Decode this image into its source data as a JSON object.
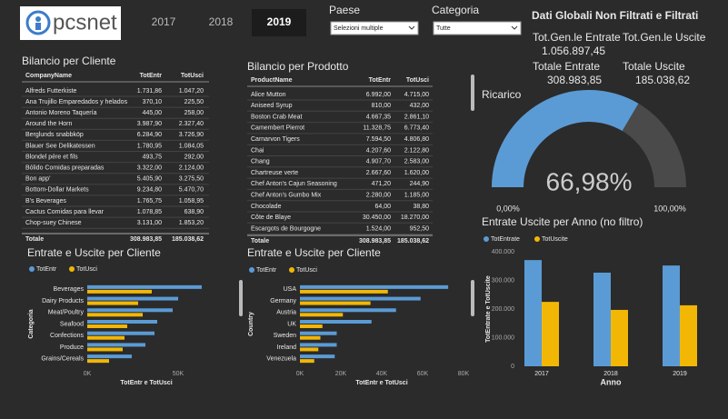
{
  "header": {
    "logo": "pcsnet",
    "years": [
      "2017",
      "2018",
      "2019"
    ]
  },
  "filters": [
    {
      "label": "Paese",
      "value": "Selezioni multiple"
    },
    {
      "label": "Categoria",
      "value": "Tutte"
    }
  ],
  "kpis": {
    "title": "Dati Globali Non Filtrati e Filtrati",
    "items": [
      {
        "label": "Tot.Gen.le Entrate",
        "value": "1.056.897,45"
      },
      {
        "label": "Tot.Gen.le Uscite"
      },
      {
        "label": "Totale Entrate",
        "value": "308.983,85"
      },
      {
        "label": "Totale Uscite",
        "value": "185.038,62"
      }
    ]
  },
  "tables": [
    {
      "title": "Bilancio per Cliente",
      "columns": [
        "CompanyName",
        "TotEntr",
        "TotUsci"
      ],
      "rows": [
        [
          "Alfreds Futterkiste",
          "1.731,86",
          "1.047,20"
        ],
        [
          "Ana Trujillo Emparedados y helados",
          "370,10",
          "225,50"
        ],
        [
          "Antonio Moreno Taquería",
          "445,00",
          "258,00"
        ],
        [
          "Around the Horn",
          "3.987,90",
          "2.327,40"
        ],
        [
          "Berglunds snabbköp",
          "6.284,90",
          "3.726,90"
        ],
        [
          "Blauer See Delikatessen",
          "1.780,95",
          "1.084,05"
        ],
        [
          "Blondel père et fils",
          "493,75",
          "292,00"
        ],
        [
          "Bólido Comidas preparadas",
          "3.322,00",
          "2.124,00"
        ],
        [
          "Bon app'",
          "5.405,90",
          "3.275,50"
        ],
        [
          "Bottom-Dollar Markets",
          "9.234,80",
          "5.470,70"
        ],
        [
          "B's Beverages",
          "1.765,75",
          "1.058,95"
        ],
        [
          "Cactus Comidas para llevar",
          "1.078,85",
          "638,90"
        ],
        [
          "Chop-suey Chinese",
          "3.131,00",
          "1.853,20"
        ]
      ],
      "total": [
        "Totale",
        "308.983,85",
        "185.038,62"
      ]
    },
    {
      "title": "Bilancio per Prodotto",
      "columns": [
        "ProductName",
        "TotEntr",
        "TotUsci"
      ],
      "rows": [
        [
          "Alice Mutton",
          "6.992,00",
          "4.715,00"
        ],
        [
          "Aniseed Syrup",
          "810,00",
          "432,00"
        ],
        [
          "Boston Crab Meat",
          "4.667,35",
          "2.861,10"
        ],
        [
          "Camembert Pierrot",
          "11.328,75",
          "6.773,40"
        ],
        [
          "Carnarvon Tigers",
          "7.594,50",
          "4.806,80"
        ],
        [
          "Chai",
          "4.207,60",
          "2.122,80"
        ],
        [
          "Chang",
          "4.907,70",
          "2.583,00"
        ],
        [
          "Chartreuse verte",
          "2.667,60",
          "1.620,00"
        ],
        [
          "Chef Anton's Cajun Seasoning",
          "471,20",
          "244,90"
        ],
        [
          "Chef Anton's Gumbo Mix",
          "2.280,00",
          "1.185,00"
        ],
        [
          "Chocolade",
          "64,00",
          "38,80"
        ],
        [
          "Côte de Blaye",
          "30.450,00",
          "18.270,00"
        ],
        [
          "Escargots de Bourgogne",
          "1.524,00",
          "952,50"
        ]
      ],
      "total": [
        "Totale",
        "308.983,85",
        "185.038,62"
      ]
    }
  ],
  "chart_data": [
    {
      "type": "gauge",
      "title": "Ricarico",
      "value": 66.98,
      "value_label": "66,98%",
      "ylim": [
        0,
        100
      ],
      "yticks": [
        {
          "value": 0,
          "label": "0,00%"
        },
        {
          "value": 100,
          "label": "100,00%"
        }
      ],
      "color": "#5b9bd5",
      "track_color": "#4a4a4a"
    },
    {
      "type": "bar",
      "orientation": "horizontal",
      "title": "Entrate e Uscite per Cliente",
      "categories": [
        "Beverages",
        "Dairy Products",
        "Meat/Poultry",
        "Seafood",
        "Confections",
        "Produce",
        "Grains/Cereals"
      ],
      "series": [
        {
          "name": "TotEntr",
          "color": "#5b9bd5",
          "values": [
            63000,
            50000,
            47000,
            38500,
            37000,
            32000,
            24500
          ]
        },
        {
          "name": "TotUsci",
          "color": "#f2b705",
          "values": [
            35500,
            28000,
            30500,
            22000,
            20500,
            19500,
            12000
          ]
        }
      ],
      "xlim": [
        0,
        65000
      ],
      "xticks": [
        {
          "value": 0,
          "label": "0K"
        },
        {
          "value": 50000,
          "label": "50K"
        }
      ],
      "xlabel": "TotEntr e TotUsci",
      "ylabel": "Categoria"
    },
    {
      "type": "bar",
      "orientation": "horizontal",
      "title": "Entrate e Uscite per Cliente",
      "categories": [
        "USA",
        "Germany",
        "Austria",
        "UK",
        "Sweden",
        "Ireland",
        "Venezuela"
      ],
      "series": [
        {
          "name": "TotEntr",
          "color": "#5b9bd5",
          "values": [
            72500,
            59000,
            47000,
            35000,
            18000,
            18000,
            17000
          ]
        },
        {
          "name": "TotUsci",
          "color": "#f2b705",
          "values": [
            43000,
            34500,
            21000,
            11000,
            10000,
            9000,
            7000
          ]
        }
      ],
      "xlim": [
        0,
        80000
      ],
      "xticks": [
        {
          "value": 0,
          "label": "0K"
        },
        {
          "value": 20000,
          "label": "20K"
        },
        {
          "value": 40000,
          "label": "40K"
        },
        {
          "value": 60000,
          "label": "60K"
        },
        {
          "value": 80000,
          "label": "80K"
        }
      ],
      "xlabel": "TotEntr e TotUsci",
      "ylabel": "Country"
    },
    {
      "type": "bar",
      "orientation": "vertical",
      "title": "Entrate Uscite per Anno (no filtro)",
      "categories": [
        "2017",
        "2018",
        "2019"
      ],
      "series": [
        {
          "name": "TotEntrate",
          "color": "#5b9bd5",
          "values": [
            371000,
            327000,
            352000
          ]
        },
        {
          "name": "TotUscite",
          "color": "#f2b705",
          "values": [
            225000,
            197000,
            213000
          ]
        }
      ],
      "ylim": [
        0,
        400000
      ],
      "yticks": [
        0,
        {
          "value": 100000,
          "label": "100.000"
        },
        {
          "value": 200000,
          "label": "200.000"
        },
        {
          "value": 300000,
          "label": "300.000"
        },
        {
          "value": 400000,
          "label": "400.000"
        }
      ],
      "xlabel": "Anno",
      "ylabel": "TotEntrate e TotUscite"
    }
  ]
}
